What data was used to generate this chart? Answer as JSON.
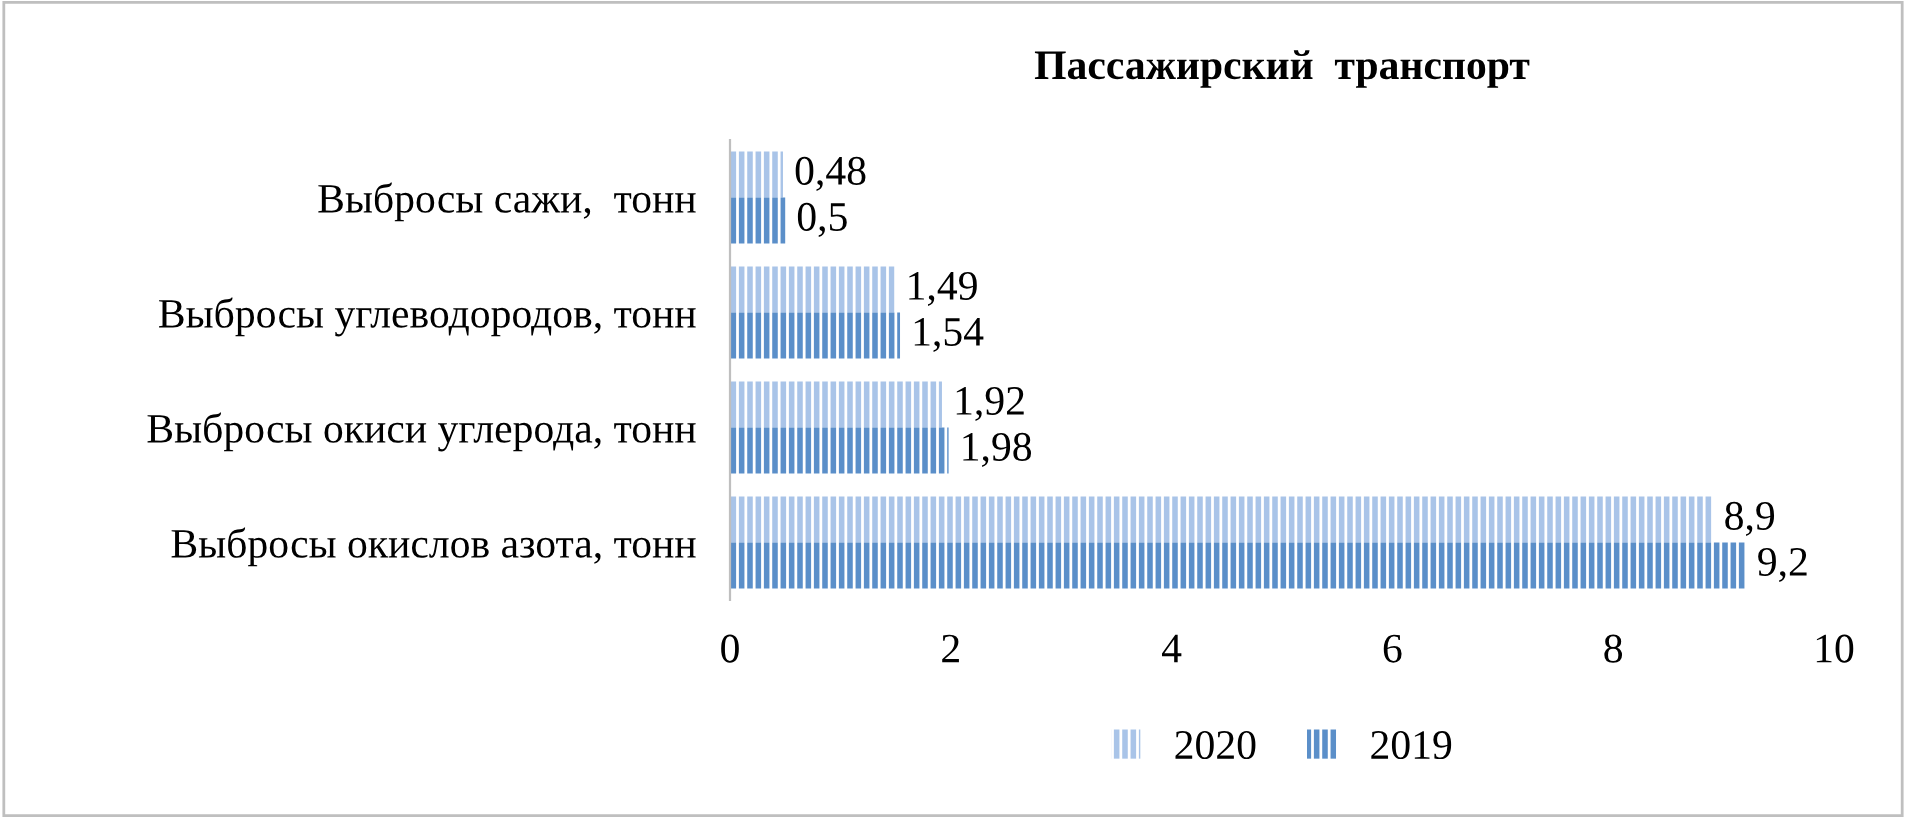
{
  "chart_data": {
    "type": "bar",
    "orientation": "horizontal",
    "title": "Пассажирский  транспорт",
    "categories": [
      "Выбросы сажи,  тонн",
      "Выбросы углеводородов, тонн",
      "Выбросы окиси углерода, тонн",
      "Выбросы окислов азота, тонн"
    ],
    "series": [
      {
        "name": "2020",
        "color": "#a9c4e8",
        "values": [
          0.48,
          1.49,
          1.92,
          8.9
        ],
        "value_labels": [
          "0,48",
          "1,49",
          "1,92",
          "8,9"
        ]
      },
      {
        "name": "2019",
        "color": "#5b8fc9",
        "values": [
          0.5,
          1.54,
          1.98,
          9.2
        ],
        "value_labels": [
          "0,5",
          "1,54",
          "1,98",
          "9,2"
        ]
      }
    ],
    "xlim": [
      0,
      10
    ],
    "xticks": [
      0,
      2,
      4,
      6,
      8,
      10
    ],
    "grid": false,
    "legend": "bottom"
  }
}
